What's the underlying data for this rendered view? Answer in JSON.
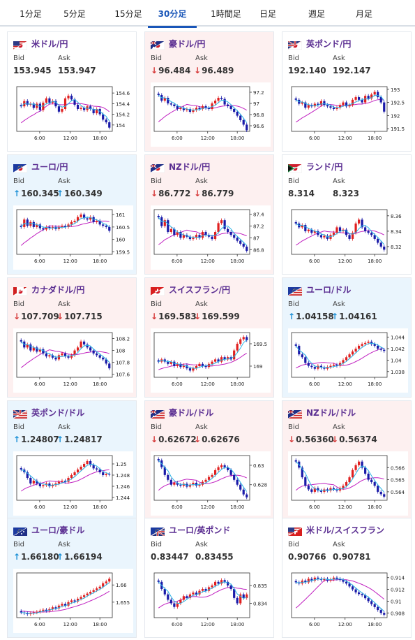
{
  "tabs": [
    "1分足",
    "5分足",
    "15分足",
    "30分足",
    "1時間足",
    "日足",
    "週足",
    "月足"
  ],
  "active_tab": "30分足",
  "labels": {
    "bid": "Bid",
    "ask": "Ask"
  },
  "colors": {
    "up_arrow": "#1a8fd6",
    "down_arrow": "#d63a3a",
    "up_card_bg": "#eaf5fd",
    "down_card_bg": "#fdf0f0",
    "candle_up": "#e02020",
    "candle_down": "#1a1aa8",
    "ma_short": "#28b4e6",
    "ma_long": "#c020c0",
    "pair_title": "#5a2d91"
  },
  "cards": [
    {
      "pair": "米ドル/円",
      "flag": "us-jp-flag",
      "trend": "neutral",
      "bid_dir": "",
      "ask_dir": "",
      "bid": "153.945",
      "ask": "153.947",
      "chart_data": {
        "type": "candlestick",
        "x_ticks": [
          "6:00",
          "12:00",
          "18:00"
        ],
        "y_ticks": [
          "154.6",
          "154.4",
          "154.2",
          "154"
        ],
        "ylim": [
          153.88,
          154.72
        ],
        "series": [
          {
            "name": "close",
            "values": [
              154.35,
              154.45,
              154.38,
              154.4,
              154.32,
              154.4,
              154.28,
              154.42,
              154.5,
              154.42,
              154.45,
              154.35,
              154.25,
              154.3,
              154.5,
              154.55,
              154.48,
              154.38,
              154.3,
              154.32,
              154.28,
              154.35,
              154.3,
              154.22,
              154.3,
              154.2,
              154.1,
              154.05,
              153.95
            ]
          }
        ]
      }
    },
    {
      "pair": "豪ドル/円",
      "flag": "au-jp-flag",
      "trend": "down",
      "bid_dir": "down",
      "ask_dir": "down",
      "bid": "96.484",
      "ask": "96.489",
      "chart_data": {
        "type": "candlestick",
        "x_ticks": [
          "6:00",
          "12:00",
          "18:00"
        ],
        "y_ticks": [
          "97.2",
          "97",
          "96.8",
          "96.6"
        ],
        "ylim": [
          96.5,
          97.3
        ],
        "series": [
          {
            "name": "close",
            "values": [
              97.15,
              97.05,
              97.1,
              97.0,
              96.98,
              96.95,
              96.9,
              96.92,
              96.88,
              96.9,
              96.85,
              96.88,
              96.92,
              96.9,
              96.95,
              96.92,
              96.9,
              97.0,
              97.05,
              97.1,
              97.08,
              96.98,
              96.95,
              96.9,
              96.85,
              96.78,
              96.7,
              96.62,
              96.52
            ]
          }
        ]
      }
    },
    {
      "pair": "英ポンド/円",
      "flag": "gb-jp-flag",
      "trend": "neutral",
      "bid_dir": "",
      "ask_dir": "",
      "bid": "192.140",
      "ask": "192.147",
      "chart_data": {
        "type": "candlestick",
        "x_ticks": [
          "6:00",
          "12:00",
          "18:00"
        ],
        "y_ticks": [
          "193",
          "192.5",
          "192",
          "191.5"
        ],
        "ylim": [
          191.4,
          193.1
        ],
        "series": [
          {
            "name": "close",
            "values": [
              192.6,
              192.45,
              192.5,
              192.3,
              192.4,
              192.35,
              192.45,
              192.4,
              192.55,
              192.4,
              192.35,
              192.3,
              192.25,
              192.3,
              192.4,
              192.5,
              192.35,
              192.4,
              192.6,
              192.7,
              192.6,
              192.5,
              192.75,
              192.65,
              192.8,
              192.9,
              192.7,
              192.5,
              192.15
            ]
          }
        ]
      }
    },
    {
      "pair": "ユーロ/円",
      "flag": "eu-jp-flag",
      "trend": "up",
      "bid_dir": "up",
      "ask_dir": "up",
      "bid": "160.345",
      "ask": "160.349",
      "chart_data": {
        "type": "candlestick",
        "x_ticks": [
          "6:00",
          "12:00",
          "18:00"
        ],
        "y_ticks": [
          "161",
          "160.5",
          "160",
          "159.5"
        ],
        "ylim": [
          159.4,
          161.2
        ],
        "series": [
          {
            "name": "close",
            "values": [
              160.5,
              160.8,
              160.55,
              160.7,
              160.5,
              160.6,
              160.45,
              160.4,
              160.5,
              160.45,
              160.5,
              160.42,
              160.5,
              160.55,
              160.5,
              160.6,
              160.7,
              160.75,
              160.9,
              161.0,
              160.85,
              160.8,
              160.9,
              160.7,
              160.75,
              160.6,
              160.55,
              160.5,
              160.35
            ]
          }
        ]
      }
    },
    {
      "pair": "NZドル/円",
      "flag": "nz-jp-flag",
      "trend": "down",
      "bid_dir": "down",
      "ask_dir": "down",
      "bid": "86.772",
      "ask": "86.779",
      "chart_data": {
        "type": "candlestick",
        "x_ticks": [
          "6:00",
          "12:00",
          "18:00"
        ],
        "y_ticks": [
          "87.4",
          "87.2",
          "87",
          "86.8"
        ],
        "ylim": [
          86.72,
          87.48
        ],
        "series": [
          {
            "name": "close",
            "values": [
              87.35,
              87.2,
              87.3,
              87.1,
              87.15,
              87.05,
              87.1,
              87.0,
              87.05,
              87.02,
              86.98,
              87.0,
              87.05,
              87.0,
              87.1,
              87.05,
              87.02,
              86.98,
              87.1,
              87.25,
              87.3,
              87.15,
              87.1,
              87.05,
              87.0,
              86.95,
              86.9,
              86.85,
              86.78
            ]
          }
        ]
      }
    },
    {
      "pair": "ランド/円",
      "flag": "za-jp-flag",
      "trend": "neutral",
      "bid_dir": "",
      "ask_dir": "",
      "bid": "8.314",
      "ask": "8.323",
      "chart_data": {
        "type": "candlestick",
        "x_ticks": [
          "6:00",
          "12:00",
          "18:00"
        ],
        "y_ticks": [
          "8.36",
          "8.34",
          "8.32"
        ],
        "ylim": [
          8.31,
          8.368
        ],
        "series": [
          {
            "name": "close",
            "values": [
              8.35,
              8.345,
              8.348,
              8.34,
              8.342,
              8.338,
              8.34,
              8.335,
              8.332,
              8.334,
              8.33,
              8.335,
              8.338,
              8.345,
              8.34,
              8.342,
              8.335,
              8.33,
              8.338,
              8.35,
              8.355,
              8.345,
              8.34,
              8.338,
              8.335,
              8.33,
              8.325,
              8.32,
              8.316
            ]
          }
        ]
      }
    },
    {
      "pair": "カナダドル/円",
      "flag": "ca-jp-flag",
      "trend": "down",
      "bid_dir": "down",
      "ask_dir": "down",
      "bid": "107.709",
      "ask": "107.715",
      "chart_data": {
        "type": "candlestick",
        "x_ticks": [
          "6:00",
          "12:00",
          "18:00"
        ],
        "y_ticks": [
          "108.2",
          "108",
          "107.8",
          "107.6"
        ],
        "ylim": [
          107.55,
          108.3
        ],
        "series": [
          {
            "name": "close",
            "values": [
              108.15,
              108.05,
              108.1,
              108.0,
              108.05,
              107.98,
              108.02,
              107.95,
              107.9,
              107.92,
              107.88,
              107.85,
              107.92,
              107.95,
              107.9,
              107.88,
              107.92,
              108.0,
              108.05,
              108.15,
              108.1,
              108.05,
              108.0,
              107.95,
              107.92,
              107.88,
              107.85,
              107.78,
              107.7
            ]
          }
        ]
      }
    },
    {
      "pair": "スイスフラン/円",
      "flag": "ch-jp-flag",
      "trend": "down",
      "bid_dir": "down",
      "ask_dir": "down",
      "bid": "169.583",
      "ask": "169.599",
      "chart_data": {
        "type": "candlestick",
        "x_ticks": [
          "6:00",
          "12:00",
          "18:00"
        ],
        "y_ticks": [
          "169.5",
          "169"
        ],
        "ylim": [
          168.75,
          169.75
        ],
        "series": [
          {
            "name": "close",
            "values": [
              169.1,
              169.15,
              169.1,
              169.05,
              169.1,
              169.0,
              169.05,
              168.98,
              169.02,
              168.95,
              168.9,
              168.95,
              169.0,
              169.05,
              169.0,
              168.98,
              169.05,
              169.1,
              169.15,
              169.1,
              169.2,
              169.15,
              169.2,
              169.15,
              169.35,
              169.5,
              169.6,
              169.65,
              169.58
            ]
          }
        ]
      }
    },
    {
      "pair": "ユーロ/ドル",
      "flag": "eu-us-flag",
      "trend": "up",
      "bid_dir": "up",
      "ask_dir": "up",
      "bid": "1.04158",
      "ask": "1.04161",
      "chart_data": {
        "type": "candlestick",
        "x_ticks": [
          "6:00",
          "12:00",
          "18:00"
        ],
        "y_ticks": [
          "1.044",
          "1.042",
          "1.04",
          "1.038"
        ],
        "ylim": [
          1.037,
          1.0448
        ],
        "series": [
          {
            "name": "close",
            "values": [
              1.0425,
              1.041,
              1.0405,
              1.0395,
              1.039,
              1.0388,
              1.0385,
              1.039,
              1.0387,
              1.0385,
              1.0388,
              1.039,
              1.0392,
              1.039,
              1.0395,
              1.04,
              1.0405,
              1.041,
              1.0415,
              1.042,
              1.0425,
              1.0428,
              1.043,
              1.0432,
              1.0428,
              1.0425,
              1.042,
              1.0418,
              1.0416
            ]
          }
        ]
      }
    },
    {
      "pair": "英ポンド/ドル",
      "flag": "gb-us-flag",
      "trend": "up",
      "bid_dir": "up",
      "ask_dir": "up",
      "bid": "1.24807",
      "ask": "1.24817",
      "chart_data": {
        "type": "candlestick",
        "x_ticks": [
          "6:00",
          "12:00",
          "18:00"
        ],
        "y_ticks": [
          "1.25",
          "1.248",
          "1.246",
          "1.244"
        ],
        "ylim": [
          1.2435,
          1.2515
        ],
        "series": [
          {
            "name": "close",
            "values": [
              1.249,
              1.2485,
              1.2475,
              1.2465,
              1.247,
              1.2465,
              1.246,
              1.2462,
              1.2465,
              1.246,
              1.2462,
              1.2465,
              1.2468,
              1.247,
              1.2468,
              1.2475,
              1.248,
              1.2485,
              1.249,
              1.2495,
              1.25,
              1.2505,
              1.2498,
              1.2492,
              1.249,
              1.2485,
              1.248,
              1.2482,
              1.2481
            ]
          }
        ]
      }
    },
    {
      "pair": "豪ドル/ドル",
      "flag": "au-us-flag",
      "trend": "down",
      "bid_dir": "down",
      "ask_dir": "down",
      "bid": "0.62672",
      "ask": "0.62676",
      "chart_data": {
        "type": "candlestick",
        "x_ticks": [
          "6:00",
          "12:00",
          "18:00"
        ],
        "y_ticks": [
          "0.63",
          "0.628"
        ],
        "ylim": [
          0.6264,
          0.631
        ],
        "series": [
          {
            "name": "close",
            "values": [
              0.6305,
              0.6298,
              0.629,
              0.6285,
              0.628,
              0.6282,
              0.628,
              0.6279,
              0.6281,
              0.6278,
              0.628,
              0.6282,
              0.6279,
              0.628,
              0.6283,
              0.6285,
              0.6288,
              0.629,
              0.6295,
              0.6298,
              0.63,
              0.6298,
              0.6295,
              0.629,
              0.6285,
              0.628,
              0.6275,
              0.627,
              0.6267
            ]
          }
        ]
      }
    },
    {
      "pair": "NZドル/ドル",
      "flag": "nz-us-flag",
      "trend": "down",
      "bid_dir": "down",
      "ask_dir": "down",
      "bid": "0.56360",
      "ask": "0.56374",
      "chart_data": {
        "type": "candlestick",
        "x_ticks": [
          "6:00",
          "12:00",
          "18:00"
        ],
        "y_ticks": [
          "0.566",
          "0.565",
          "0.564"
        ],
        "ylim": [
          0.5633,
          0.567
        ],
        "series": [
          {
            "name": "close",
            "values": [
              0.5665,
              0.566,
              0.5652,
              0.5645,
              0.5642,
              0.564,
              0.5643,
              0.5641,
              0.564,
              0.5642,
              0.5641,
              0.5643,
              0.5642,
              0.5641,
              0.5643,
              0.5645,
              0.5648,
              0.5652,
              0.5658,
              0.5662,
              0.5665,
              0.566,
              0.5655,
              0.565,
              0.5648,
              0.5645,
              0.564,
              0.5638,
              0.5636
            ]
          }
        ]
      }
    },
    {
      "pair": "ユーロ/豪ドル",
      "flag": "eu-au-flag",
      "trend": "up",
      "bid_dir": "up",
      "ask_dir": "up",
      "bid": "1.66180",
      "ask": "1.66194",
      "chart_data": {
        "type": "candlestick",
        "x_ticks": [
          "6:00",
          "12:00",
          "18:00"
        ],
        "y_ticks": [
          "1.66",
          "1.655"
        ],
        "ylim": [
          1.6505,
          1.6635
        ],
        "series": [
          {
            "name": "close",
            "values": [
              1.652,
              1.6518,
              1.6515,
              1.6518,
              1.652,
              1.6522,
              1.6525,
              1.6528,
              1.6525,
              1.653,
              1.6535,
              1.6532,
              1.654,
              1.6545,
              1.654,
              1.655,
              1.6555,
              1.6552,
              1.656,
              1.6565,
              1.657,
              1.6575,
              1.658,
              1.6585,
              1.659,
              1.6595,
              1.6605,
              1.661,
              1.6618
            ]
          }
        ]
      }
    },
    {
      "pair": "ユーロ/英ポンド",
      "flag": "eu-gb-flag",
      "trend": "neutral",
      "bid_dir": "",
      "ask_dir": "",
      "bid": "0.83447",
      "ask": "0.83455",
      "chart_data": {
        "type": "candlestick",
        "x_ticks": [
          "6:00",
          "12:00",
          "18:00"
        ],
        "y_ticks": [
          "0.835",
          "0.834"
        ],
        "ylim": [
          0.8332,
          0.8357
        ],
        "series": [
          {
            "name": "close",
            "values": [
              0.8352,
              0.8348,
              0.8345,
              0.8342,
              0.834,
              0.8338,
              0.834,
              0.8342,
              0.8344,
              0.8343,
              0.8345,
              0.8346,
              0.8345,
              0.8347,
              0.8348,
              0.8347,
              0.8349,
              0.835,
              0.8352,
              0.8351,
              0.8353,
              0.8352,
              0.835,
              0.8348,
              0.8343,
              0.834,
              0.8345,
              0.8343,
              0.8345
            ]
          }
        ]
      }
    },
    {
      "pair": "米ドル/スイスフラン",
      "flag": "us-ch-flag",
      "trend": "neutral",
      "bid_dir": "",
      "ask_dir": "",
      "bid": "0.90766",
      "ask": "0.90781",
      "chart_data": {
        "type": "candlestick",
        "x_ticks": [
          "6:00",
          "12:00",
          "18:00"
        ],
        "y_ticks": [
          "0.914",
          "0.912",
          "0.91",
          "0.908"
        ],
        "ylim": [
          0.9072,
          0.9148
        ],
        "series": [
          {
            "name": "close",
            "values": [
              0.9132,
              0.913,
              0.9135,
              0.9132,
              0.9138,
              0.9135,
              0.914,
              0.9138,
              0.9136,
              0.9138,
              0.9135,
              0.9137,
              0.914,
              0.9138,
              0.9136,
              0.9133,
              0.913,
              0.9125,
              0.912,
              0.9115,
              0.9112,
              0.911,
              0.9105,
              0.91,
              0.9095,
              0.909,
              0.9085,
              0.908,
              0.9077
            ]
          }
        ]
      }
    }
  ]
}
